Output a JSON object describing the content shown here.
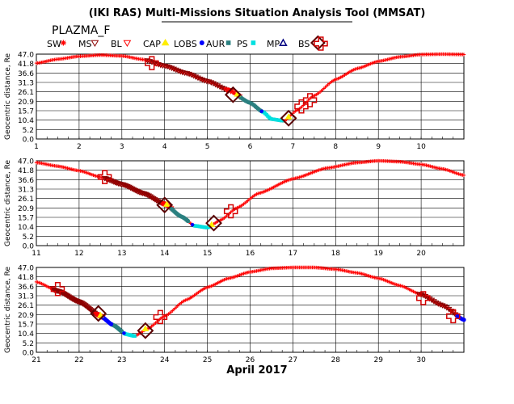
{
  "title": "(IKI RAS) Multi-Missions Situation Analysis Tool (MMSAT)",
  "mission": "PLAZMA_F",
  "month_label": "April 2017",
  "colors": {
    "trajectory": "#ff0000",
    "ms": "#8b0000",
    "bl": "#ff0000",
    "cap": "#ffee00",
    "lobs": "#0000ff",
    "aur": "#2a8080",
    "ps": "#00e0e0",
    "mp": "#000080",
    "bs_diamond": "#5a0000",
    "bs_cross": "#d40000"
  },
  "legend": [
    {
      "label": "SW",
      "symbol": "asterisk",
      "color": "#ff0000"
    },
    {
      "label": "MS",
      "symbol": "triangle-down",
      "color": "#8b0000"
    },
    {
      "label": "BL",
      "symbol": "triangle-down",
      "color": "#ff0000"
    },
    {
      "label": "CAP",
      "symbol": "triangle-up",
      "color": "#ffee00"
    },
    {
      "label": "LOBS",
      "symbol": "circle",
      "color": "#0000ff"
    },
    {
      "label": "AUR",
      "symbol": "square",
      "color": "#2a8080"
    },
    {
      "label": "PS",
      "symbol": "square",
      "color": "#00e0e0"
    },
    {
      "label": "MP",
      "symbol": "triangle-up-open",
      "color": "#000080"
    },
    {
      "label": "BS",
      "symbol": "diamond",
      "color": "#5a0000"
    },
    {
      "label": "",
      "symbol": "cross-open",
      "color": "#d40000"
    }
  ],
  "chart_data": [
    {
      "type": "scatter",
      "ylabel": "Geocentric distance, Re",
      "ylim": [
        0,
        47
      ],
      "yticks": [
        "0.0",
        "5.2",
        "10.4",
        "15.7",
        "20.9",
        "26.1",
        "31.3",
        "36.6",
        "41.8",
        "47.0"
      ],
      "xlim": [
        1,
        11
      ],
      "xticks": [
        1,
        2,
        3,
        4,
        5,
        6,
        7,
        8,
        9,
        10
      ],
      "grid": true,
      "trajectory": [
        [
          1,
          42
        ],
        [
          1.5,
          44.2
        ],
        [
          2,
          45.8
        ],
        [
          2.5,
          46.5
        ],
        [
          3,
          46
        ],
        [
          3.5,
          44
        ],
        [
          4,
          40.5
        ],
        [
          4.5,
          36.5
        ],
        [
          5,
          32
        ],
        [
          5.5,
          27
        ],
        [
          6,
          20
        ],
        [
          6.3,
          15
        ],
        [
          6.5,
          11
        ],
        [
          6.8,
          10
        ],
        [
          7.1,
          16
        ],
        [
          7.5,
          24
        ],
        [
          8,
          33
        ],
        [
          8.5,
          39
        ],
        [
          9,
          43
        ],
        [
          9.5,
          45.5
        ],
        [
          10,
          46.8
        ],
        [
          10.5,
          47
        ],
        [
          11,
          46.8
        ]
      ],
      "ms_range": [
        3.6,
        5.55
      ],
      "bl_range": [
        5.45,
        5.75
      ],
      "aur_range": [
        5.75,
        6.3
      ],
      "lobs_points": [
        6.27
      ],
      "ps_range": [
        6.3,
        6.75
      ],
      "cap_points": [
        5.7,
        6.9
      ],
      "bs_diamonds": [
        [
          5.6,
          24.5
        ],
        [
          6.9,
          11.5
        ]
      ],
      "bs_crosses": [
        [
          3.7,
          42
        ],
        [
          7.2,
          18
        ],
        [
          7.4,
          21.5
        ]
      ]
    },
    {
      "type": "scatter",
      "ylabel": "Geocentric distance, Re",
      "ylim": [
        0,
        47
      ],
      "yticks": [
        "0.0",
        "5.2",
        "10.4",
        "15.7",
        "20.9",
        "26.1",
        "31.3",
        "36.6",
        "41.8",
        "47.0"
      ],
      "xlim": [
        11,
        21
      ],
      "xticks": [
        11,
        12,
        13,
        14,
        15,
        16,
        17,
        18,
        19,
        20
      ],
      "grid": true,
      "trajectory": [
        [
          11,
          46
        ],
        [
          11.5,
          44
        ],
        [
          12,
          41.5
        ],
        [
          12.5,
          38
        ],
        [
          13,
          34
        ],
        [
          13.5,
          29
        ],
        [
          14,
          23
        ],
        [
          14.4,
          16
        ],
        [
          14.7,
          11
        ],
        [
          15,
          10
        ],
        [
          15.3,
          14
        ],
        [
          15.7,
          21
        ],
        [
          16.2,
          29
        ],
        [
          17,
          37
        ],
        [
          17.8,
          43
        ],
        [
          18.5,
          46
        ],
        [
          19,
          47
        ],
        [
          19.5,
          46.5
        ],
        [
          20,
          45
        ],
        [
          20.5,
          42.5
        ],
        [
          21,
          39
        ]
      ],
      "ms_range": [
        12.6,
        13.95
      ],
      "bl_range": [
        13.95,
        14.15
      ],
      "aur_range": [
        14.15,
        14.55
      ],
      "lobs_points": [
        14.65
      ],
      "ps_range": [
        14.7,
        15.05
      ],
      "cap_points": [
        14.05,
        15.1
      ],
      "bs_diamonds": [
        [
          14.0,
          22.5
        ],
        [
          15.15,
          12.5
        ]
      ],
      "bs_crosses": [
        [
          12.6,
          38
        ],
        [
          15.55,
          19
        ]
      ]
    },
    {
      "type": "scatter",
      "ylabel": "Geocentric distance, Re",
      "ylim": [
        0,
        47
      ],
      "yticks": [
        "0.0",
        "5.2",
        "10.4",
        "15.7",
        "20.9",
        "26.1",
        "31.3",
        "36.6",
        "41.8",
        "47.0"
      ],
      "xlim": [
        21,
        31
      ],
      "xticks": [
        21,
        22,
        23,
        24,
        25,
        26,
        27,
        28,
        29,
        30
      ],
      "grid": true,
      "month_label": "April 2017",
      "trajectory": [
        [
          21,
          39
        ],
        [
          21.5,
          34
        ],
        [
          22,
          28
        ],
        [
          22.5,
          20
        ],
        [
          22.8,
          15
        ],
        [
          23.1,
          10
        ],
        [
          23.3,
          9
        ],
        [
          23.6,
          13
        ],
        [
          24,
          20
        ],
        [
          24.5,
          29
        ],
        [
          25,
          36
        ],
        [
          25.5,
          41
        ],
        [
          26,
          44.5
        ],
        [
          26.5,
          46.5
        ],
        [
          27,
          47
        ],
        [
          27.5,
          47
        ],
        [
          28,
          46
        ],
        [
          28.5,
          44
        ],
        [
          29,
          41
        ],
        [
          29.5,
          37
        ],
        [
          30,
          32
        ],
        [
          30.5,
          26
        ],
        [
          31,
          18
        ]
      ],
      "ms_range": [
        21.4,
        22.45
      ],
      "bl_range": [
        22.4,
        22.55
      ],
      "lobs_range": [
        22.55,
        22.75
      ],
      "aur_range": [
        22.75,
        23.0
      ],
      "lobs_points": [
        23.05
      ],
      "ps_range": [
        23.05,
        23.3
      ],
      "cap_points": [
        22.5,
        23.55
      ],
      "bs_diamonds": [
        [
          22.45,
          21.5
        ],
        [
          23.55,
          12
        ]
      ],
      "bs_crosses": [
        [
          21.5,
          35
        ],
        [
          23.9,
          19.5
        ],
        [
          30.05,
          30
        ],
        [
          30.75,
          20
        ]
      ],
      "ms_range_2": [
        29.95,
        30.85
      ],
      "lobs_range_2": [
        30.85,
        31
      ]
    }
  ]
}
